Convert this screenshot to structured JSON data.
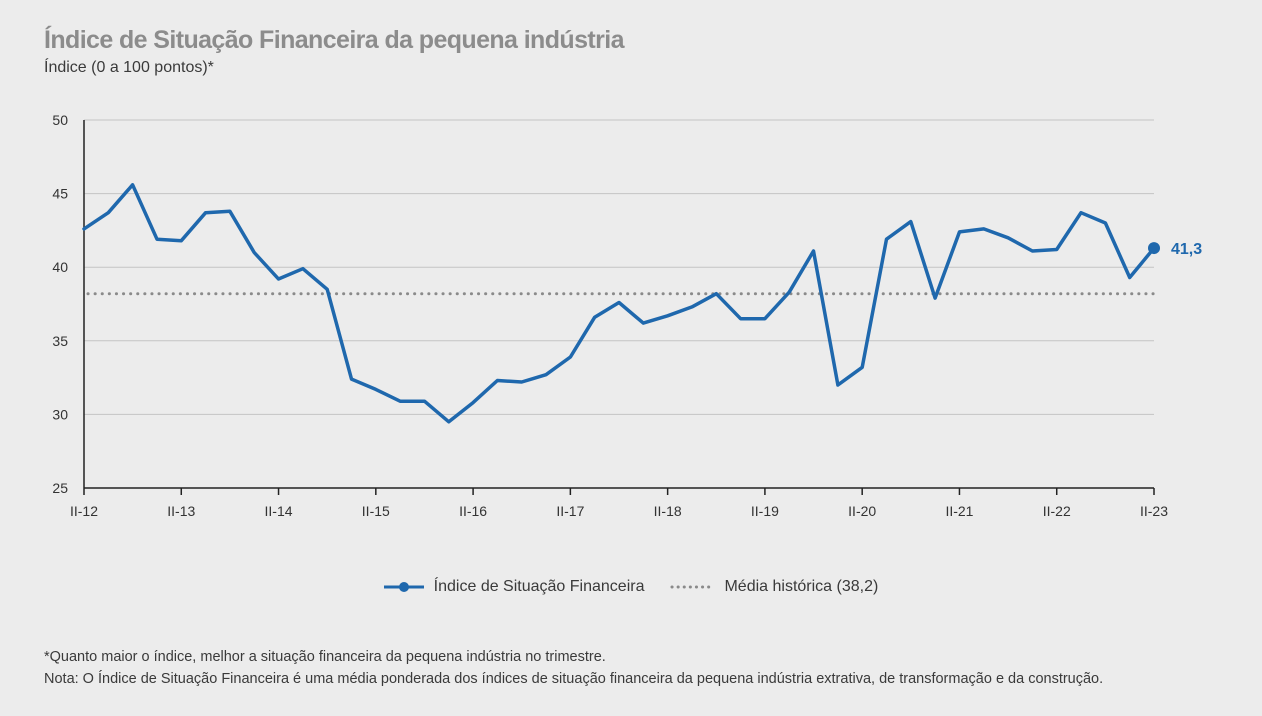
{
  "header": {
    "title": "Índice de Situação Financeira da pequena indústria",
    "subtitle": "Índice (0 a 100 pontos)*"
  },
  "legend": {
    "series_label": "Índice de Situação Financeira",
    "mean_label": "Média histórica (38,2)"
  },
  "notes": {
    "note1": "*Quanto maior o índice, melhor a situação financeira da pequena indústria no trimestre.",
    "note2": "Nota: O Índice de Situação Financeira é uma média ponderada dos índices de situação financeira da pequena indústria extrativa, de transformação e da construção."
  },
  "chart_data": {
    "type": "line",
    "title": "Índice de Situação Financeira da pequena indústria",
    "ylabel": "Índice (0 a 100 pontos)*",
    "xlabel": "",
    "ylim": [
      25,
      50
    ],
    "yticks": [
      25,
      30,
      35,
      40,
      45,
      50
    ],
    "x_tick_labels": [
      "II-12",
      "II-13",
      "II-14",
      "II-15",
      "II-16",
      "II-17",
      "II-18",
      "II-19",
      "II-20",
      "II-21",
      "II-22",
      "II-23"
    ],
    "grid": true,
    "legend_position": "bottom-center",
    "series": [
      {
        "name": "Índice de Situação Financeira",
        "color": "#1f68ad",
        "x": [
          "II-12",
          "III-12",
          "IV-12",
          "I-13",
          "II-13",
          "III-13",
          "IV-13",
          "I-14",
          "II-14",
          "III-14",
          "IV-14",
          "I-15",
          "II-15",
          "III-15",
          "IV-15",
          "I-16",
          "II-16",
          "III-16",
          "IV-16",
          "I-17",
          "II-17",
          "III-17",
          "IV-17",
          "I-18",
          "II-18",
          "III-18",
          "IV-18",
          "I-19",
          "II-19",
          "III-19",
          "IV-19",
          "I-20",
          "II-20",
          "III-20",
          "IV-20",
          "I-21",
          "II-21",
          "III-21",
          "IV-21",
          "I-22",
          "II-22",
          "III-22",
          "IV-22",
          "I-23",
          "II-23"
        ],
        "values": [
          42.6,
          43.7,
          45.6,
          41.9,
          41.8,
          43.7,
          43.8,
          41.0,
          39.2,
          39.9,
          38.5,
          32.4,
          31.7,
          30.9,
          30.9,
          29.5,
          30.8,
          32.3,
          32.2,
          32.7,
          33.9,
          36.6,
          37.6,
          36.2,
          36.7,
          37.3,
          38.2,
          36.5,
          36.5,
          38.3,
          41.1,
          32.0,
          33.2,
          41.9,
          43.1,
          37.9,
          42.4,
          42.6,
          42.0,
          41.1,
          41.2,
          43.7,
          43.0,
          39.3,
          41.3
        ]
      }
    ],
    "reference_line": {
      "name": "Média histórica (38,2)",
      "value": 38.2,
      "color": "#8a8a8a"
    },
    "end_label": "41,3"
  }
}
